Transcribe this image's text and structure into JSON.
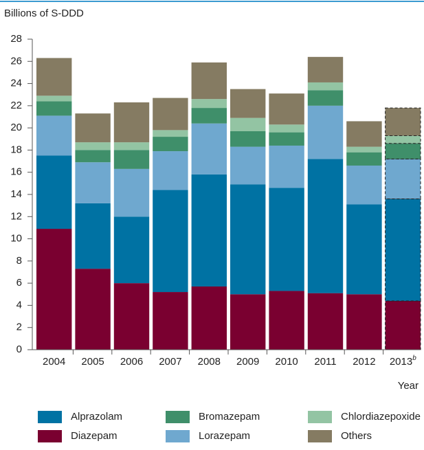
{
  "chart_data": {
    "type": "stacked_bar",
    "ylabel": "Billions of S-DDD",
    "xlabel": "Year",
    "categories": [
      "2004",
      "2005",
      "2006",
      "2007",
      "2008",
      "2009",
      "2010",
      "2011",
      "2012",
      "2013"
    ],
    "category_superscripts": [
      null,
      null,
      null,
      null,
      null,
      null,
      null,
      null,
      null,
      "b"
    ],
    "estimated": [
      false,
      false,
      false,
      false,
      false,
      false,
      false,
      false,
      false,
      true
    ],
    "series": [
      {
        "name": "Diazepam",
        "color": "#7a0030",
        "values": [
          10.9,
          7.3,
          6.0,
          5.2,
          5.7,
          5.0,
          5.3,
          5.1,
          5.0,
          4.4
        ]
      },
      {
        "name": "Alprazolam",
        "color": "#0072a3",
        "values": [
          6.6,
          5.9,
          6.0,
          9.2,
          10.1,
          9.9,
          9.3,
          12.1,
          8.1,
          9.2
        ]
      },
      {
        "name": "Lorazepam",
        "color": "#6fa8cf",
        "values": [
          3.6,
          3.7,
          4.3,
          3.5,
          4.6,
          3.4,
          3.8,
          4.8,
          3.5,
          3.6
        ]
      },
      {
        "name": "Bromazepam",
        "color": "#3f8f6a",
        "values": [
          1.3,
          1.1,
          1.7,
          1.3,
          1.4,
          1.4,
          1.2,
          1.4,
          1.2,
          1.4
        ]
      },
      {
        "name": "Chlordiazepoxide",
        "color": "#93c4a3",
        "values": [
          0.5,
          0.7,
          0.7,
          0.6,
          0.8,
          1.2,
          0.7,
          0.7,
          0.5,
          0.7
        ]
      },
      {
        "name": "Others",
        "color": "#857b62",
        "values": [
          3.4,
          2.6,
          3.6,
          2.9,
          3.3,
          2.6,
          2.8,
          2.3,
          2.3,
          2.5
        ]
      }
    ],
    "ylim": [
      0,
      28
    ],
    "yticks": [
      0,
      2,
      4,
      6,
      8,
      10,
      12,
      14,
      16,
      18,
      20,
      22,
      24,
      26,
      28
    ]
  }
}
